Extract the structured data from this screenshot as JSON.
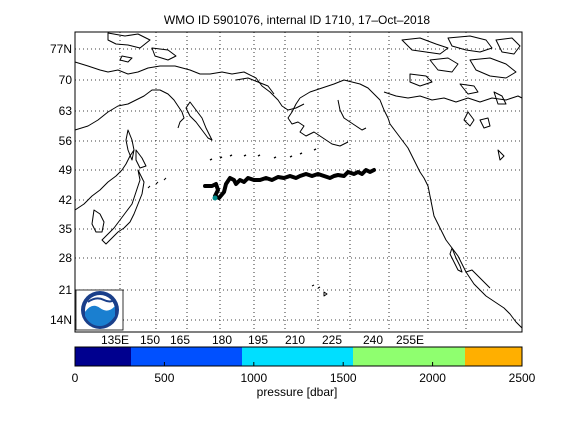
{
  "title": "WMO ID 5901076, internal ID 1710, 17–Oct–2018",
  "map": {
    "lat_labels": [
      "77N",
      "70",
      "63",
      "56",
      "49",
      "42",
      "35",
      "28",
      "21",
      "14N"
    ],
    "lon_labels": [
      "135E",
      "150",
      "165",
      "180",
      "195",
      "210",
      "225",
      "240",
      "255E"
    ],
    "grid": true,
    "grid_style": "dotted",
    "float_track_color": "#000000",
    "float_marker_color": "#008b8b",
    "logo": "noaa-logo"
  },
  "colorbar": {
    "label": "pressure [dbar]",
    "ticks": [
      "0",
      "500",
      "1000",
      "1500",
      "2000",
      "2500"
    ],
    "colors": [
      "#00008f",
      "#0050ff",
      "#00dfff",
      "#8fff6f",
      "#ffaf00"
    ]
  }
}
